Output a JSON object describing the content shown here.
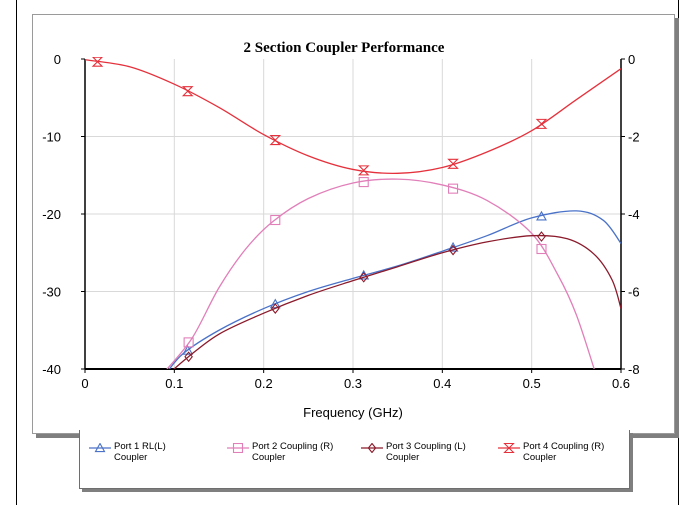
{
  "chart_data": {
    "type": "line",
    "title": "2 Section Coupler Performance",
    "xlabel": "Frequency (GHz)",
    "xlim": [
      0,
      0.6
    ],
    "ylim_left": [
      -40,
      0
    ],
    "ylim_right": [
      -8,
      0
    ],
    "x_ticks": [
      "0",
      "0.1",
      "0.2",
      "0.3",
      "0.4",
      "0.5",
      "0.6"
    ],
    "y_left_ticks": [
      "0",
      "-10",
      "-20",
      "-30",
      "-40"
    ],
    "y_right_ticks": [
      "0",
      "-2",
      "-4",
      "-6",
      "-8"
    ],
    "grid": true,
    "legend_position": "bottom",
    "series": [
      {
        "name": "Port 1 RL(L) Coupler",
        "axis": "left",
        "color": "#4a72c8",
        "marker": "triangle",
        "points": [
          [
            0.09,
            -40.7
          ],
          [
            0.11,
            -38.0
          ],
          [
            0.15,
            -35.0
          ],
          [
            0.2,
            -32.2
          ],
          [
            0.25,
            -30.0
          ],
          [
            0.3,
            -28.3
          ],
          [
            0.35,
            -26.7
          ],
          [
            0.4,
            -24.8
          ],
          [
            0.45,
            -22.8
          ],
          [
            0.5,
            -20.5
          ],
          [
            0.55,
            -19.6
          ],
          [
            0.58,
            -20.8
          ],
          [
            0.6,
            -23.8
          ]
        ],
        "markers_x": [
          0.115,
          0.213,
          0.312,
          0.412,
          0.511
        ]
      },
      {
        "name": "Port 2 Coupling (R) Coupler",
        "axis": "right",
        "color": "#e17fb9",
        "marker": "square",
        "points": [
          [
            0.09,
            -8.05
          ],
          [
            0.12,
            -7.2
          ],
          [
            0.15,
            -5.9
          ],
          [
            0.18,
            -4.9
          ],
          [
            0.21,
            -4.2
          ],
          [
            0.25,
            -3.6
          ],
          [
            0.3,
            -3.2
          ],
          [
            0.35,
            -3.1
          ],
          [
            0.4,
            -3.25
          ],
          [
            0.45,
            -3.65
          ],
          [
            0.5,
            -4.5
          ],
          [
            0.53,
            -5.6
          ],
          [
            0.55,
            -6.6
          ],
          [
            0.57,
            -8.0
          ]
        ],
        "markers_x": [
          0.116,
          0.213,
          0.312,
          0.412,
          0.511
        ]
      },
      {
        "name": "Port 3 Coupling (L) Coupler",
        "axis": "left",
        "color": "#8b1a2b",
        "marker": "diamond",
        "points": [
          [
            0.09,
            -41.0
          ],
          [
            0.115,
            -38.5
          ],
          [
            0.15,
            -35.5
          ],
          [
            0.2,
            -32.8
          ],
          [
            0.25,
            -30.5
          ],
          [
            0.3,
            -28.6
          ],
          [
            0.35,
            -26.8
          ],
          [
            0.4,
            -25.0
          ],
          [
            0.45,
            -23.6
          ],
          [
            0.5,
            -22.8
          ],
          [
            0.54,
            -23.2
          ],
          [
            0.57,
            -25.2
          ],
          [
            0.59,
            -28.5
          ],
          [
            0.6,
            -32.2
          ]
        ],
        "markers_x": [
          0.116,
          0.213,
          0.312,
          0.412,
          0.511
        ]
      },
      {
        "name": "Port 4 Coupling (R) Coupler",
        "axis": "right",
        "color": "#e5313c",
        "marker": "hourglass",
        "points": [
          [
            0.0,
            -0.02
          ],
          [
            0.05,
            -0.2
          ],
          [
            0.1,
            -0.65
          ],
          [
            0.15,
            -1.25
          ],
          [
            0.2,
            -1.95
          ],
          [
            0.25,
            -2.5
          ],
          [
            0.3,
            -2.85
          ],
          [
            0.35,
            -2.95
          ],
          [
            0.4,
            -2.8
          ],
          [
            0.45,
            -2.4
          ],
          [
            0.5,
            -1.85
          ],
          [
            0.55,
            -1.05
          ],
          [
            0.6,
            -0.25
          ]
        ],
        "markers_x": [
          0.014,
          0.115,
          0.213,
          0.312,
          0.412,
          0.511
        ]
      }
    ]
  },
  "legend": [
    {
      "line1": "Port 1 RL(L)",
      "line2": "Coupler"
    },
    {
      "line1": "Port 2 Coupling (R)",
      "line2": "Coupler"
    },
    {
      "line1": "Port 3 Coupling (L)",
      "line2": "Coupler"
    },
    {
      "line1": "Port 4 Coupling (R)",
      "line2": "Coupler"
    }
  ]
}
